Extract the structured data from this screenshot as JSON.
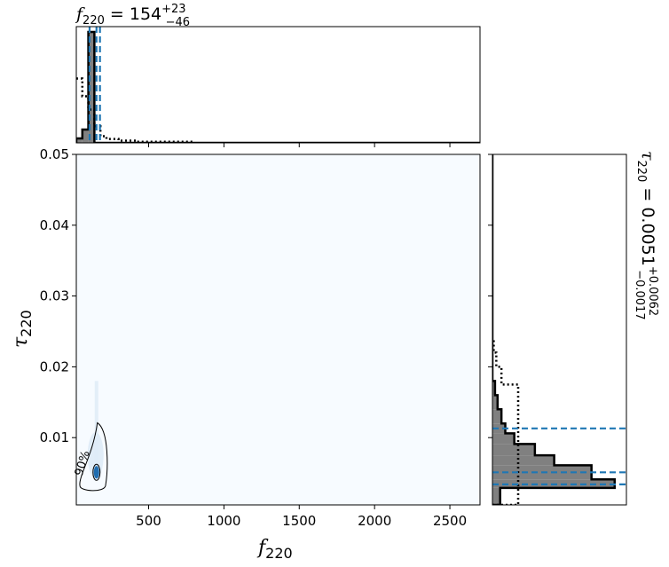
{
  "chart_data": {
    "type": "corner",
    "colors": {
      "posterior_fill": "#808080",
      "posterior_edge": "#000000",
      "credible_lines": "#1f77b4",
      "density_low": "#f7fbff",
      "density_high": "#1f6db0"
    },
    "joint": {
      "type": "heatmap",
      "xlabel": "f",
      "xlabel_sub": "220",
      "ylabel": "τ",
      "ylabel_sub": "220",
      "xlim": [
        20,
        2700
      ],
      "ylim": [
        0.0005,
        0.05
      ],
      "xticks": [
        500,
        1000,
        1500,
        2000,
        2500
      ],
      "xtick_labels": [
        "500",
        "1000",
        "1500",
        "2000",
        "2500"
      ],
      "yticks": [
        0.01,
        0.02,
        0.03,
        0.04,
        0.05
      ],
      "ytick_labels": [
        "0.01",
        "0.02",
        "0.03",
        "0.04",
        "0.05"
      ],
      "contour_label": "90%",
      "contour_level": 0.9,
      "peak": [
        154,
        0.0051
      ]
    },
    "f_marginal": {
      "title_var": "f",
      "title_sub": "220",
      "title_eq": " = 154",
      "title_sup": "+23",
      "title_low": "−46",
      "median": 154,
      "lower": 108,
      "upper": 177,
      "posterior": {
        "bin_edges": [
          20,
          60,
          100,
          140,
          180
        ],
        "counts": [
          0.04,
          0.12,
          1.0,
          0.0
        ]
      },
      "prior": {
        "bin_edges": [
          20,
          60,
          100,
          140,
          180,
          220,
          300,
          420,
          800
        ],
        "counts": [
          0.58,
          0.42,
          0.3,
          0.15,
          0.06,
          0.035,
          0.02,
          0.01
        ]
      }
    },
    "tau_marginal": {
      "title_var": "τ",
      "title_sub": "220",
      "title_eq": " = 0.0051",
      "title_sup": "+0.0062",
      "title_low": "−0.0017",
      "median": 0.0051,
      "lower": 0.0034,
      "upper": 0.0113,
      "posterior": {
        "bin_edges": [
          0.0005,
          0.0029,
          0.0041,
          0.0061,
          0.0075,
          0.0091,
          0.0106,
          0.012,
          0.014,
          0.016,
          0.018
        ],
        "counts": [
          0.06,
          0.95,
          0.77,
          0.48,
          0.33,
          0.17,
          0.1,
          0.07,
          0.04,
          0.02
        ]
      },
      "prior": {
        "bin_edges": [
          0.0005,
          0.003,
          0.006,
          0.012,
          0.0175,
          0.02,
          0.022,
          0.024
        ],
        "counts": [
          0.2,
          0.2,
          0.2,
          0.2,
          0.07,
          0.03,
          0.01
        ]
      }
    }
  }
}
